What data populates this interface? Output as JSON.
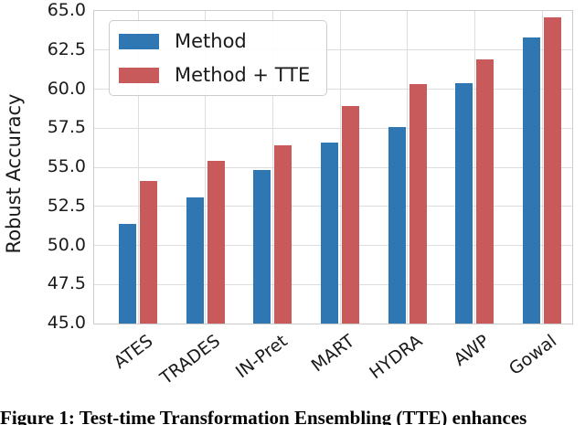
{
  "figure": {
    "caption": "Figure 1: Test-time Transformation Ensembling (TTE) enhances"
  },
  "chart_data": {
    "type": "bar",
    "title": "",
    "xlabel": "",
    "ylabel": "Robust Accuracy",
    "ylim": [
      45.0,
      65.0
    ],
    "yticks": [
      45.0,
      47.5,
      50.0,
      52.5,
      55.0,
      57.5,
      60.0,
      62.5,
      65.0
    ],
    "categories": [
      "ATES",
      "TRADES",
      "IN-Pret",
      "MART",
      "HYDRA",
      "AWP",
      "Gowal"
    ],
    "series": [
      {
        "name": "Method",
        "color": "#2F77B3",
        "values": [
          51.4,
          53.1,
          54.8,
          56.6,
          57.6,
          60.4,
          63.3
        ]
      },
      {
        "name": "Method + TTE",
        "color": "#C85A5C",
        "values": [
          54.1,
          55.4,
          56.4,
          58.9,
          60.3,
          61.9,
          64.6
        ]
      }
    ],
    "legend": {
      "position": "upper left",
      "entries": [
        "Method",
        "Method + TTE"
      ]
    },
    "grid": true,
    "colors": {
      "grid": "#DDDDDD",
      "spine": "#CCCCCC",
      "tick_label": "#1A1A1A"
    }
  }
}
